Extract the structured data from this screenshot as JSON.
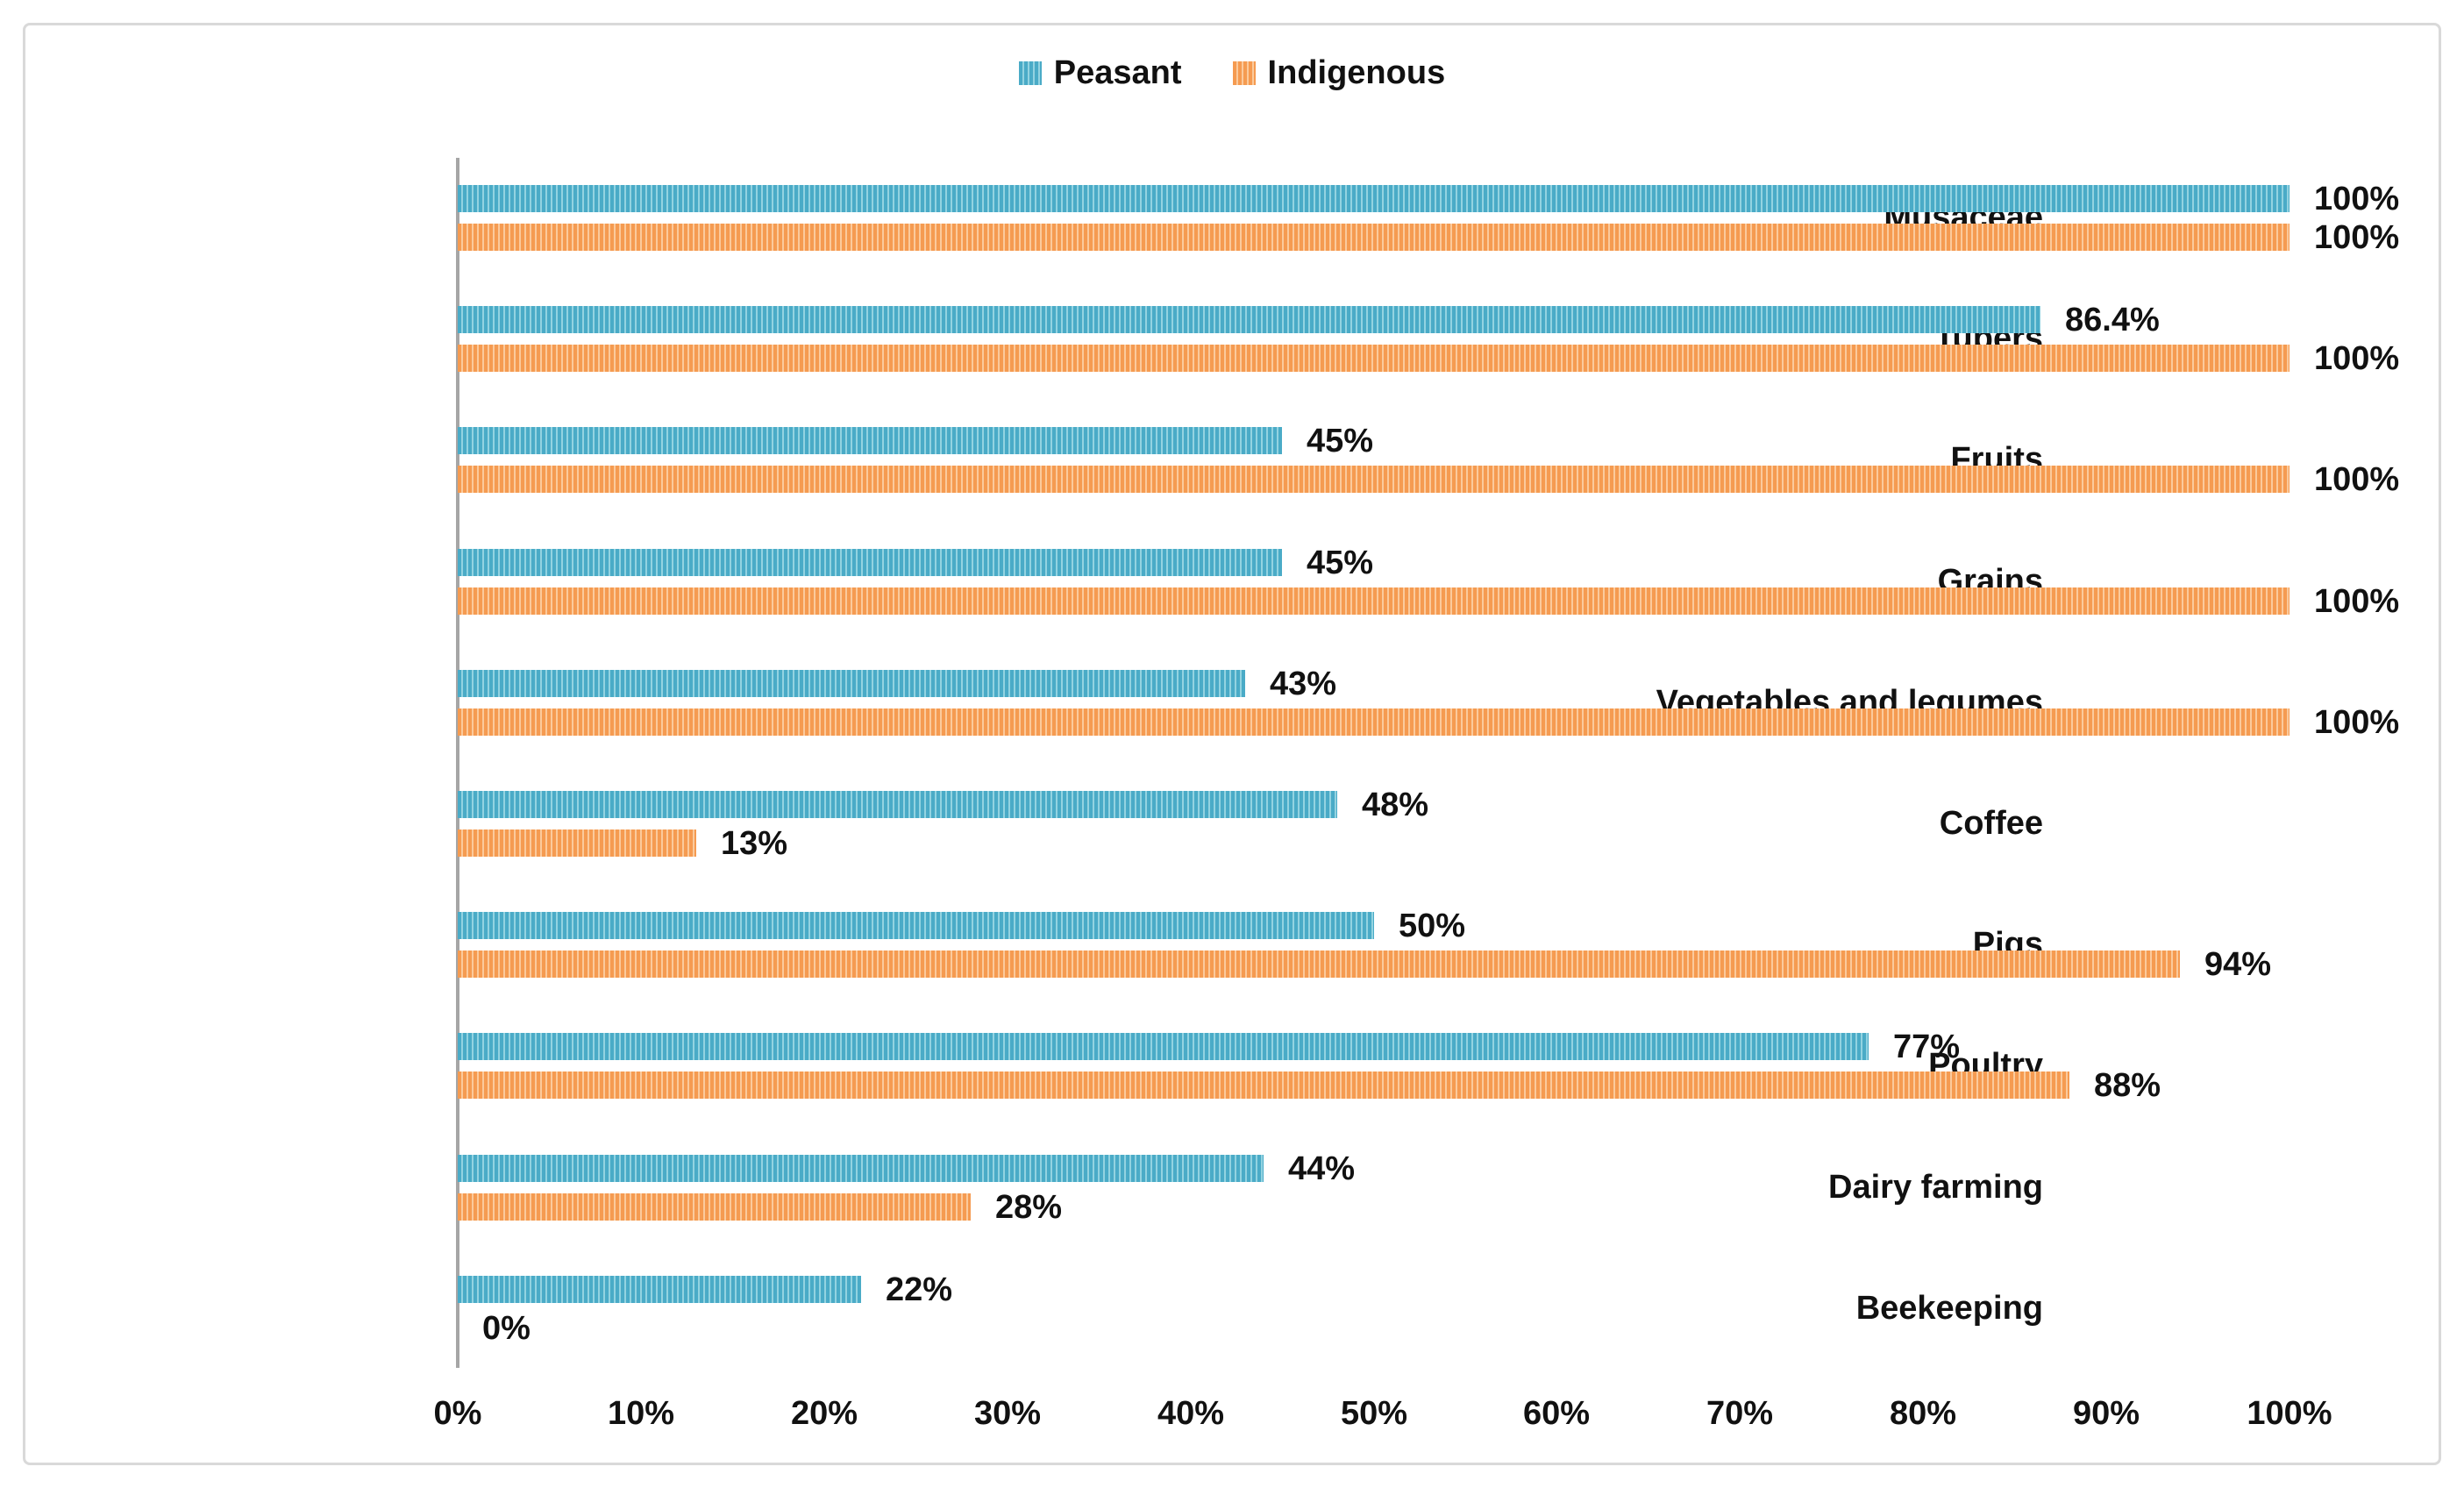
{
  "chart_data": {
    "type": "bar",
    "orientation": "horizontal",
    "title": "",
    "categories": [
      "Musaceae",
      "Tubers",
      "Fruits",
      "Grains",
      "Vegetables and legumes",
      "Coffee",
      "Pigs",
      "Poultry",
      "Dairy farming",
      "Beekeeping"
    ],
    "series": [
      {
        "name": "Peasant",
        "color": "#4aabc7",
        "color_light": "#93d3e1",
        "values": [
          100,
          86.4,
          45,
          45,
          43,
          48,
          50,
          77,
          44,
          22
        ],
        "value_labels": [
          "100%",
          "86.4%",
          "45%",
          "45%",
          "43%",
          "48%",
          "50%",
          "77%",
          "44%",
          "22%"
        ]
      },
      {
        "name": "Indigenous",
        "color": "#f59b51",
        "color_light": "#fbca9c",
        "values": [
          100,
          100,
          100,
          100,
          100,
          13,
          94,
          88,
          28,
          0
        ],
        "value_labels": [
          "100%",
          "100%",
          "100%",
          "100%",
          "100%",
          "13%",
          "94%",
          "88%",
          "28%",
          "0%"
        ]
      }
    ],
    "x_ticks": [
      "0%",
      "10%",
      "20%",
      "30%",
      "40%",
      "50%",
      "60%",
      "70%",
      "80%",
      "90%",
      "100%"
    ],
    "xlim": [
      0,
      100
    ],
    "grid": false,
    "legend_position": "top-center",
    "bar_pattern": "vertical-stripes",
    "axis_color": "#a6a6a6",
    "frame_color": "#d9d9d9"
  }
}
